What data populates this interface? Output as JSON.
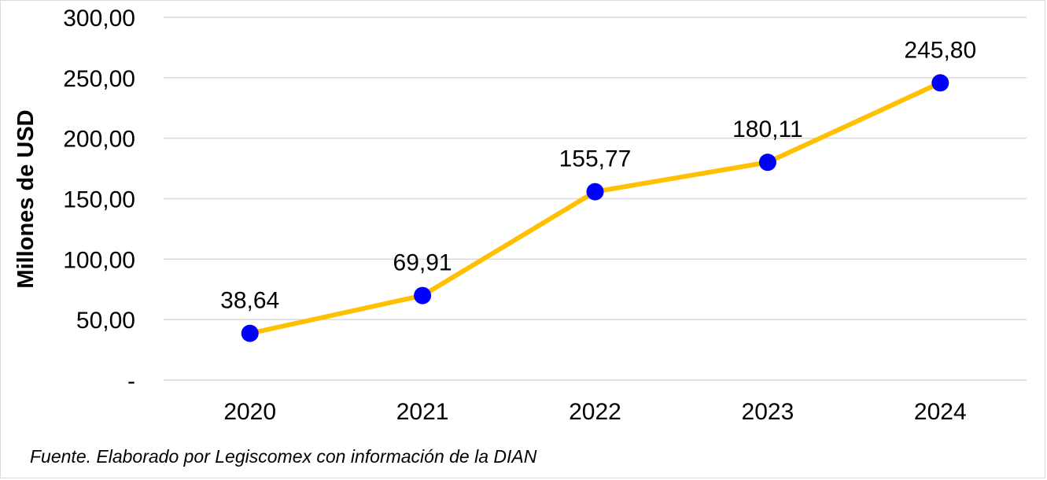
{
  "chart_data": {
    "type": "line",
    "categories": [
      "2020",
      "2021",
      "2022",
      "2023",
      "2024"
    ],
    "values": [
      38.64,
      69.91,
      155.77,
      180.11,
      245.8
    ],
    "data_labels": [
      "38,64",
      "69,91",
      "155,77",
      "180,11",
      "245,80"
    ],
    "ylabel": "Millones de USD",
    "xlabel": "",
    "ylim": [
      0,
      300
    ],
    "y_ticks": [
      0,
      50,
      100,
      150,
      200,
      250,
      300
    ],
    "y_tick_labels": [
      "-",
      "50,00",
      "100,00",
      "150,00",
      "200,00",
      "250,00",
      "300,00"
    ],
    "grid": true,
    "line_color": "#FFC000",
    "marker_color": "#0000FF",
    "grid_color": "#D9D9D9"
  },
  "source_note": "Fuente. Elaborado por Legiscomex con información de la DIAN"
}
